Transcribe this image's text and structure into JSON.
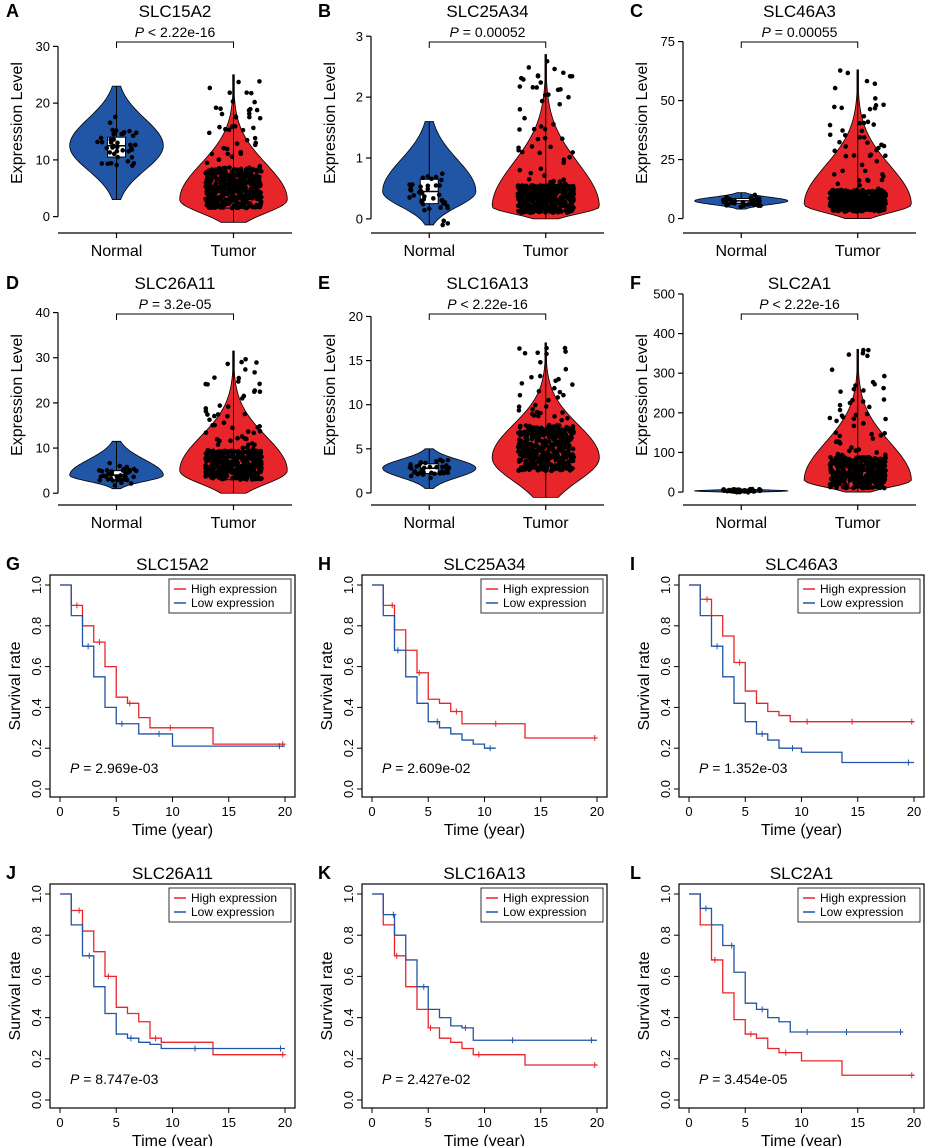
{
  "figure": {
    "violin_ylabel": "Expression Level",
    "km_xlabel": "Time (year)",
    "km_ylabel": "Survival rate",
    "legend_high": "High expression",
    "legend_low": "Low expression",
    "pvalue_prefix": "P",
    "colors": {
      "normal": "#2155a5",
      "tumor": "#e8252b",
      "high": "#e8252b",
      "low": "#2155a5",
      "point": "#000000"
    }
  },
  "chart_data": [
    {
      "type": "violin",
      "panel": "A",
      "title": "SLC15A2",
      "categories": [
        "Normal",
        "Tumor"
      ],
      "ylim": [
        -2,
        35
      ],
      "yticks": [
        "0",
        "10",
        "20",
        "30"
      ],
      "ytick_values": [
        0,
        10,
        20,
        30
      ],
      "pvalue_relation": "<",
      "pvalue": "2.22e-16",
      "series": [
        {
          "name": "Normal",
          "min": 3,
          "q1": 10.5,
          "median": 12.5,
          "q3": 14,
          "max": 23,
          "n": 40
        },
        {
          "name": "Tumor",
          "min": -1,
          "q1": 1.5,
          "median": 3,
          "q3": 7,
          "max": 25,
          "n": 420
        }
      ]
    },
    {
      "type": "violin",
      "panel": "B",
      "title": "SLC25A34",
      "categories": [
        "Normal",
        "Tumor"
      ],
      "ylim": [
        -0.15,
        3.3
      ],
      "yticks": [
        "0",
        "1",
        "2",
        "3"
      ],
      "ytick_values": [
        0,
        1,
        2,
        3
      ],
      "pvalue_relation": "=",
      "pvalue": "0.00052",
      "series": [
        {
          "name": "Normal",
          "min": -0.1,
          "q1": 0.25,
          "median": 0.45,
          "q3": 0.65,
          "max": 1.6,
          "n": 40
        },
        {
          "name": "Tumor",
          "min": 0,
          "q1": 0.1,
          "median": 0.2,
          "q3": 0.45,
          "max": 2.7,
          "n": 420
        }
      ]
    },
    {
      "type": "violin",
      "panel": "C",
      "title": "SLC46A3",
      "categories": [
        "Normal",
        "Tumor"
      ],
      "ylim": [
        -4,
        85
      ],
      "yticks": [
        "0",
        "25",
        "50",
        "75"
      ],
      "ytick_values": [
        0,
        25,
        50,
        75
      ],
      "pvalue_relation": "=",
      "pvalue": "0.00055",
      "series": [
        {
          "name": "Normal",
          "min": 4,
          "q1": 6.5,
          "median": 7.5,
          "q3": 8.5,
          "max": 11,
          "n": 40
        },
        {
          "name": "Tumor",
          "min": 0,
          "q1": 3,
          "median": 6,
          "q3": 10,
          "max": 63,
          "n": 420
        }
      ]
    },
    {
      "type": "violin",
      "panel": "D",
      "title": "SLC26A11",
      "categories": [
        "Normal",
        "Tumor"
      ],
      "ylim": [
        -1.5,
        45
      ],
      "yticks": [
        "0",
        "10",
        "20",
        "30",
        "40"
      ],
      "ytick_values": [
        0,
        10,
        20,
        30,
        40
      ],
      "pvalue_relation": "=",
      "pvalue": "3.2e-05",
      "series": [
        {
          "name": "Normal",
          "min": 1,
          "q1": 3,
          "median": 4,
          "q3": 5,
          "max": 11.5,
          "n": 40
        },
        {
          "name": "Tumor",
          "min": 0,
          "q1": 3,
          "median": 5,
          "q3": 8,
          "max": 31.5,
          "n": 420
        }
      ]
    },
    {
      "type": "violin",
      "panel": "E",
      "title": "SLC16A13",
      "categories": [
        "Normal",
        "Tumor"
      ],
      "ylim": [
        -0.8,
        23
      ],
      "yticks": [
        "0",
        "5",
        "10",
        "15",
        "20"
      ],
      "ytick_values": [
        0,
        5,
        10,
        15,
        20
      ],
      "pvalue_relation": "<",
      "pvalue": "2.22e-16",
      "series": [
        {
          "name": "Normal",
          "min": 0.5,
          "q1": 2.2,
          "median": 2.8,
          "q3": 3.3,
          "max": 5,
          "n": 40
        },
        {
          "name": "Tumor",
          "min": -0.5,
          "q1": 2.5,
          "median": 4,
          "q3": 6.5,
          "max": 17,
          "n": 420
        }
      ]
    },
    {
      "type": "violin",
      "panel": "F",
      "title": "SLC2A1",
      "categories": [
        "Normal",
        "Tumor"
      ],
      "ylim": [
        -20,
        510
      ],
      "yticks": [
        "0",
        "100",
        "200",
        "300",
        "400",
        "500"
      ],
      "ytick_values": [
        0,
        100,
        200,
        300,
        400,
        500
      ],
      "pvalue_relation": "<",
      "pvalue": "2.22e-16",
      "series": [
        {
          "name": "Normal",
          "min": -2,
          "q1": 1,
          "median": 3,
          "q3": 5,
          "max": 8,
          "n": 40
        },
        {
          "name": "Tumor",
          "min": 0,
          "q1": 10,
          "median": 30,
          "q3": 70,
          "max": 360,
          "n": 420
        }
      ]
    },
    {
      "type": "km",
      "panel": "G",
      "title": "SLC15A2",
      "xlim": [
        0,
        20
      ],
      "ylim": [
        0,
        1
      ],
      "xticks": [
        "0",
        "5",
        "10",
        "15",
        "20"
      ],
      "yticks": [
        "0.0",
        "0.2",
        "0.4",
        "0.6",
        "0.8",
        "1.0"
      ],
      "pvalue": "2.969e-03",
      "series": [
        {
          "name": "High expression",
          "time": [
            0,
            1,
            2,
            3,
            4,
            5,
            6,
            7,
            8,
            9,
            10,
            12,
            13.6,
            20
          ],
          "surv": [
            1,
            0.9,
            0.8,
            0.72,
            0.6,
            0.45,
            0.42,
            0.35,
            0.3,
            0.3,
            0.3,
            0.3,
            0.22,
            0.22
          ],
          "censor": [
            1.5,
            3.5,
            6.2,
            9.8,
            19.8
          ]
        },
        {
          "name": "Low expression",
          "time": [
            0,
            1,
            2,
            3,
            4,
            5,
            6,
            7,
            9,
            10,
            20
          ],
          "surv": [
            1,
            0.85,
            0.7,
            0.55,
            0.4,
            0.32,
            0.32,
            0.27,
            0.27,
            0.21,
            0.21
          ],
          "censor": [
            2.5,
            5.5,
            8.8,
            19.5
          ]
        }
      ]
    },
    {
      "type": "km",
      "panel": "H",
      "title": "SLC25A34",
      "xlim": [
        0,
        20
      ],
      "ylim": [
        0,
        1
      ],
      "xticks": [
        "0",
        "5",
        "10",
        "15",
        "20"
      ],
      "yticks": [
        "0.0",
        "0.2",
        "0.4",
        "0.6",
        "0.8",
        "1.0"
      ],
      "pvalue": "2.609e-02",
      "series": [
        {
          "name": "High expression",
          "time": [
            0,
            1,
            2,
            3,
            4,
            5,
            6,
            7,
            8,
            10,
            12,
            13.6,
            20
          ],
          "surv": [
            1,
            0.9,
            0.78,
            0.68,
            0.57,
            0.44,
            0.42,
            0.38,
            0.32,
            0.32,
            0.32,
            0.25,
            0.25
          ],
          "censor": [
            1.8,
            4.2,
            7.5,
            11,
            19.8
          ]
        },
        {
          "name": "Low expression",
          "time": [
            0,
            1,
            2,
            3,
            4,
            5,
            6,
            7,
            8,
            9,
            10,
            11
          ],
          "surv": [
            1,
            0.85,
            0.68,
            0.55,
            0.42,
            0.33,
            0.3,
            0.27,
            0.24,
            0.22,
            0.2,
            0.2
          ],
          "censor": [
            2.3,
            5.8,
            10.5
          ]
        }
      ]
    },
    {
      "type": "km",
      "panel": "I",
      "title": "SLC46A3",
      "xlim": [
        0,
        20
      ],
      "ylim": [
        0,
        1
      ],
      "xticks": [
        "0",
        "5",
        "10",
        "15",
        "20"
      ],
      "yticks": [
        "0.0",
        "0.2",
        "0.4",
        "0.6",
        "0.8",
        "1.0"
      ],
      "pvalue": "1.352e-03",
      "series": [
        {
          "name": "High expression",
          "time": [
            0,
            1,
            2,
            3,
            4,
            5,
            6,
            7,
            8,
            9,
            12,
            20
          ],
          "surv": [
            1,
            0.93,
            0.85,
            0.75,
            0.62,
            0.48,
            0.42,
            0.38,
            0.36,
            0.33,
            0.33,
            0.33
          ],
          "censor": [
            1.6,
            4.5,
            10.5,
            14.5,
            19.8
          ]
        },
        {
          "name": "Low expression",
          "time": [
            0,
            1,
            2,
            3,
            4,
            5,
            6,
            7,
            8,
            10,
            13.6,
            20
          ],
          "surv": [
            1,
            0.85,
            0.7,
            0.55,
            0.42,
            0.33,
            0.27,
            0.24,
            0.2,
            0.18,
            0.13,
            0.13
          ],
          "censor": [
            2.5,
            6.5,
            9.2,
            19.5
          ]
        }
      ]
    },
    {
      "type": "km",
      "panel": "J",
      "title": "SLC26A11",
      "xlim": [
        0,
        20
      ],
      "ylim": [
        0,
        1
      ],
      "xticks": [
        "0",
        "5",
        "10",
        "15",
        "20"
      ],
      "yticks": [
        "0.0",
        "0.2",
        "0.4",
        "0.6",
        "0.8",
        "1.0"
      ],
      "pvalue": "8.747e-03",
      "series": [
        {
          "name": "High expression",
          "time": [
            0,
            1,
            2,
            3,
            4,
            5,
            6,
            7,
            8,
            9,
            10,
            13.6,
            20
          ],
          "surv": [
            1,
            0.92,
            0.82,
            0.72,
            0.6,
            0.45,
            0.42,
            0.38,
            0.3,
            0.28,
            0.28,
            0.22,
            0.22
          ],
          "censor": [
            1.7,
            4.3,
            8.5,
            19.8
          ]
        },
        {
          "name": "Low expression",
          "time": [
            0,
            1,
            2,
            3,
            4,
            5,
            6,
            7,
            8,
            9,
            20
          ],
          "surv": [
            1,
            0.85,
            0.7,
            0.55,
            0.42,
            0.32,
            0.3,
            0.28,
            0.27,
            0.25,
            0.25
          ],
          "censor": [
            2.6,
            6.3,
            12,
            19.6
          ]
        }
      ]
    },
    {
      "type": "km",
      "panel": "K",
      "title": "SLC16A13",
      "xlim": [
        0,
        20
      ],
      "ylim": [
        0,
        1
      ],
      "xticks": [
        "0",
        "5",
        "10",
        "15",
        "20"
      ],
      "yticks": [
        "0.0",
        "0.2",
        "0.4",
        "0.6",
        "0.8",
        "1.0"
      ],
      "pvalue": "2.427e-02",
      "series": [
        {
          "name": "High expression",
          "time": [
            0,
            1,
            2,
            3,
            4,
            5,
            6,
            7,
            8,
            9,
            13.6,
            20
          ],
          "surv": [
            1,
            0.85,
            0.7,
            0.55,
            0.44,
            0.35,
            0.3,
            0.28,
            0.25,
            0.22,
            0.17,
            0.17
          ],
          "censor": [
            2.2,
            5.2,
            9.5,
            19.8
          ]
        },
        {
          "name": "Low expression",
          "time": [
            0,
            1,
            2,
            3,
            4,
            5,
            6,
            7,
            8,
            9,
            20
          ],
          "surv": [
            1,
            0.9,
            0.8,
            0.68,
            0.55,
            0.44,
            0.4,
            0.36,
            0.35,
            0.29,
            0.29
          ],
          "censor": [
            1.9,
            4.6,
            8.3,
            12.5,
            19.5
          ]
        }
      ]
    },
    {
      "type": "km",
      "panel": "L",
      "title": "SLC2A1",
      "xlim": [
        0,
        20
      ],
      "ylim": [
        0,
        1
      ],
      "xticks": [
        "0",
        "5",
        "10",
        "15",
        "20"
      ],
      "yticks": [
        "0.0",
        "0.2",
        "0.4",
        "0.6",
        "0.8",
        "1.0"
      ],
      "pvalue": "3.454e-05",
      "series": [
        {
          "name": "High expression",
          "time": [
            0,
            1,
            2,
            3,
            4,
            5,
            6,
            7,
            8,
            10,
            13.6,
            20
          ],
          "surv": [
            1,
            0.85,
            0.68,
            0.52,
            0.39,
            0.32,
            0.3,
            0.25,
            0.23,
            0.19,
            0.12,
            0.12
          ],
          "censor": [
            2.3,
            5.5,
            8.6,
            19.8
          ]
        },
        {
          "name": "Low expression",
          "time": [
            0,
            1,
            2,
            3,
            4,
            5,
            6,
            7,
            8,
            9,
            19
          ],
          "surv": [
            1,
            0.93,
            0.85,
            0.75,
            0.62,
            0.47,
            0.44,
            0.4,
            0.38,
            0.33,
            0.33
          ],
          "censor": [
            1.5,
            3.8,
            6.5,
            10.5,
            14,
            18.8
          ]
        }
      ]
    }
  ]
}
